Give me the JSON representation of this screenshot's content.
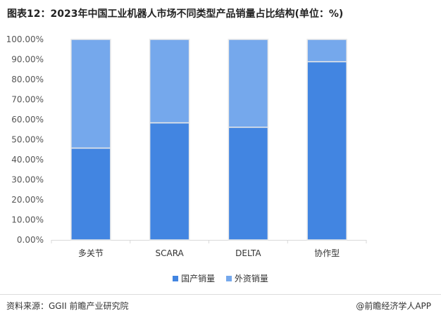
{
  "chart_data": {
    "type": "bar",
    "stacked": true,
    "title": "图表12：2023年中国工业机器人市场不同类型产品销量占比结构(单位：%)",
    "categories": [
      "多关节",
      "SCARA",
      "DELTA",
      "协作型"
    ],
    "series": [
      {
        "name": "国产销量",
        "values": [
          45.8,
          58.4,
          56.2,
          88.9
        ],
        "color": "#4285E1"
      },
      {
        "name": "外资销量",
        "values": [
          54.2,
          41.6,
          43.8,
          11.1
        ],
        "color": "#75A8EC"
      }
    ],
    "ylim": [
      0,
      100
    ],
    "yticks": [
      "0.00%",
      "10.00%",
      "20.00%",
      "30.00%",
      "40.00%",
      "50.00%",
      "60.00%",
      "70.00%",
      "80.00%",
      "90.00%",
      "100.00%"
    ],
    "grid": false,
    "legend": "bottom"
  },
  "footer": {
    "source": "资料来源：GGII 前瞻产业研究院",
    "brand": "@前瞻经济学人APP"
  }
}
